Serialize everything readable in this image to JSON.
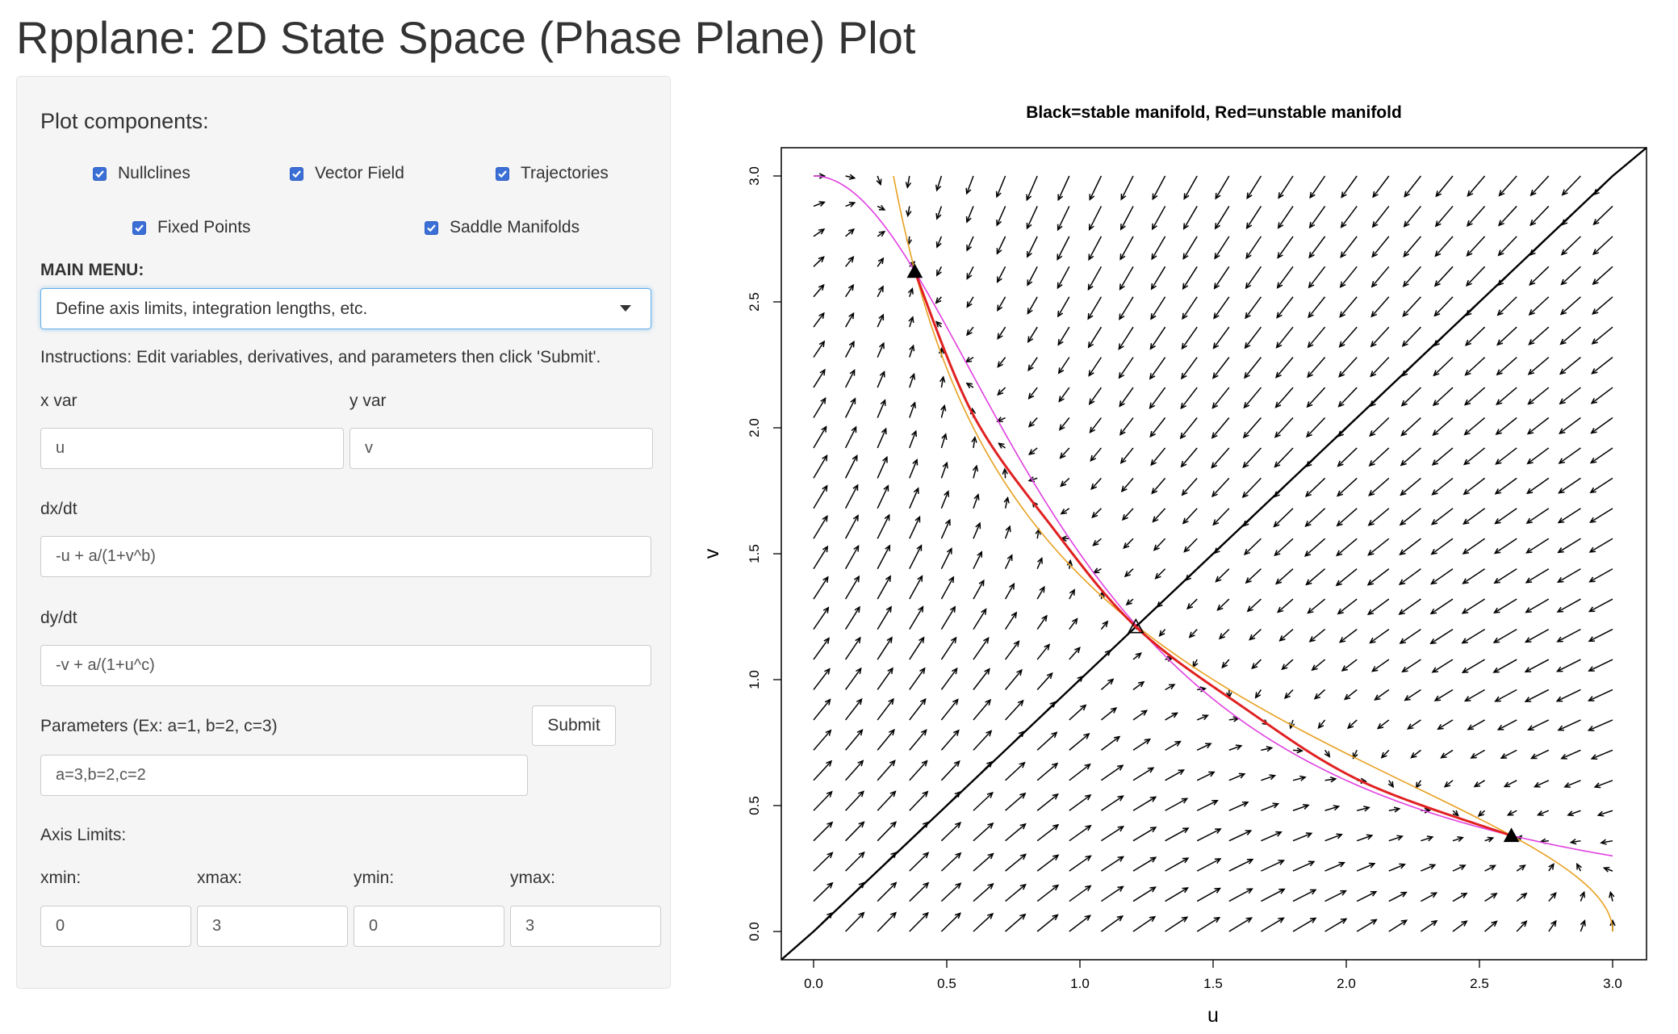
{
  "app": {
    "title": "Rpplane: 2D State Space (Phase Plane) Plot"
  },
  "sidebar": {
    "plot_components_heading": "Plot components:",
    "checkboxes": [
      {
        "label": "Nullclines",
        "checked": true
      },
      {
        "label": "Vector Field",
        "checked": true
      },
      {
        "label": "Trajectories",
        "checked": true
      },
      {
        "label": "Fixed Points",
        "checked": true
      },
      {
        "label": "Saddle Manifolds",
        "checked": true
      }
    ],
    "main_menu_label": "MAIN MENU:",
    "main_menu_selected": "Define axis limits, integration lengths, etc.",
    "instructions": "Instructions: Edit variables, derivatives, and parameters then click 'Submit'.",
    "x_var": {
      "label": "x var",
      "value": "u"
    },
    "y_var": {
      "label": "y var",
      "value": "v"
    },
    "dxdt": {
      "label": "dx/dt",
      "value": "-u + a/(1+v^b)"
    },
    "dydt": {
      "label": "dy/dt",
      "value": "-v + a/(1+u^c)"
    },
    "parameters": {
      "label": "Parameters (Ex: a=1, b=2, c=3)",
      "value": "a=3,b=2,c=2"
    },
    "submit_label": "Submit",
    "axis_limits_heading": "Axis Limits:",
    "axis_limits": [
      {
        "label": "xmin:",
        "value": "0"
      },
      {
        "label": "xmax:",
        "value": "3"
      },
      {
        "label": "ymin:",
        "value": "0"
      },
      {
        "label": "ymax:",
        "value": "3"
      }
    ]
  },
  "chart_data": {
    "type": "scatter",
    "title": "Black=stable manifold, Red=unstable manifold",
    "xlabel": "u",
    "ylabel": "v",
    "xlim": [
      0,
      3
    ],
    "ylim": [
      0,
      3
    ],
    "x_ticks": [
      "0.0",
      "0.5",
      "1.0",
      "1.5",
      "2.0",
      "2.5",
      "3.0"
    ],
    "y_ticks": [
      "0.0",
      "0.5",
      "1.0",
      "1.5",
      "2.0",
      "2.5",
      "3.0"
    ],
    "system": {
      "a": 3,
      "b": 2,
      "c": 2
    },
    "vector_field_grid": 26,
    "fixed_points": [
      {
        "u": 0.38,
        "v": 2.62,
        "kind": "stable"
      },
      {
        "u": 1.21,
        "v": 1.21,
        "kind": "saddle"
      },
      {
        "u": 2.62,
        "v": 0.38,
        "kind": "stable"
      }
    ],
    "stable_manifold": [
      [
        0.0,
        0.0
      ],
      [
        3.0,
        3.0
      ]
    ],
    "unstable_manifold": [
      [
        0.38,
        2.62
      ],
      [
        0.6,
        2.05
      ],
      [
        0.9,
        1.6
      ],
      [
        1.21,
        1.21
      ],
      [
        1.6,
        0.9
      ],
      [
        2.05,
        0.6
      ],
      [
        2.62,
        0.38
      ]
    ],
    "colors": {
      "u_nullcline": "#e8a020",
      "v_nullcline": "#e040e0",
      "stable_manifold": "#000000",
      "unstable_manifold": "#e02020",
      "vector": "#000000"
    }
  }
}
